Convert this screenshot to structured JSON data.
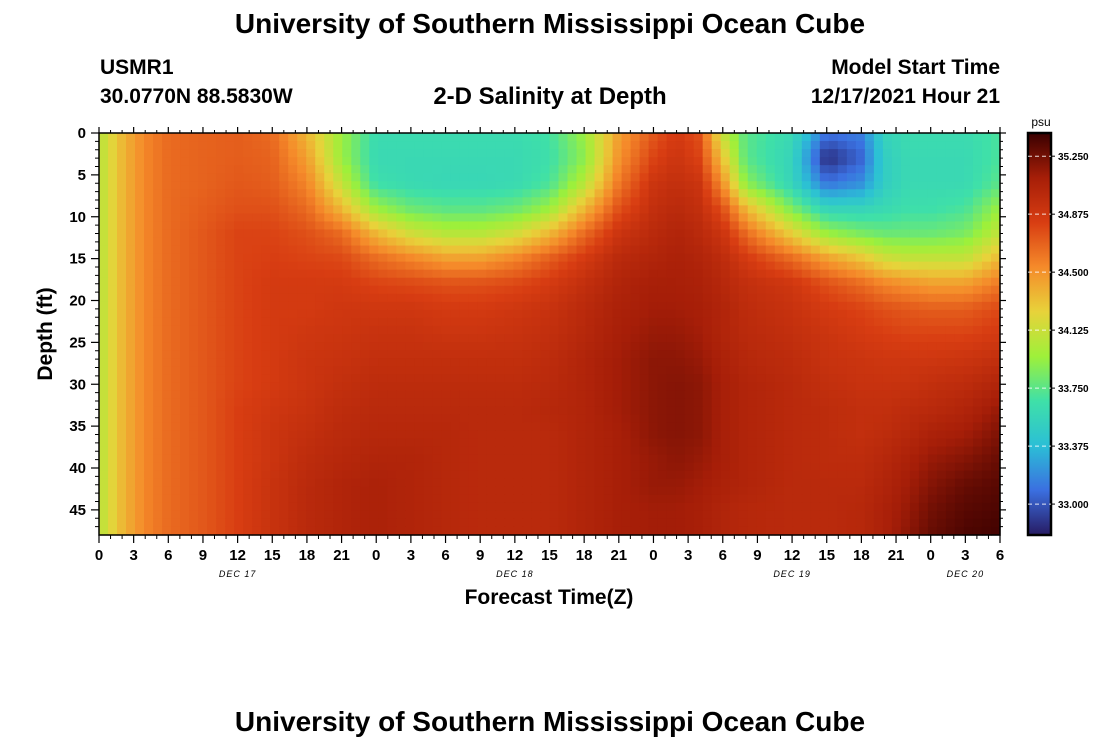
{
  "header": {
    "title": "University of Southern Mississippi Ocean Cube",
    "station": "USMR1",
    "coords": "30.0770N  88.5830W",
    "subtitle": "2-D Salinity at Depth",
    "model_start_label": "Model Start Time",
    "model_start_value": "12/17/2021 Hour 21"
  },
  "footer": {
    "title": "University of Southern Mississippi Ocean Cube"
  },
  "chart_data": {
    "type": "heatmap",
    "title": "2-D Salinity at Depth",
    "xlabel": "Forecast Time(Z)",
    "ylabel": "Depth (ft)",
    "colorbar_label": "psu",
    "x_ticks": [
      "0",
      "3",
      "6",
      "9",
      "12",
      "15",
      "18",
      "21",
      "0",
      "3",
      "6",
      "9",
      "12",
      "15",
      "18",
      "21",
      "0",
      "3",
      "6",
      "9",
      "12",
      "15",
      "18",
      "21",
      "0",
      "3",
      "6"
    ],
    "x_range_hours": [
      0,
      78
    ],
    "date_labels": [
      {
        "label": "DEC 17",
        "hour": 12
      },
      {
        "label": "DEC 18",
        "hour": 36
      },
      {
        "label": "DEC 19",
        "hour": 60
      },
      {
        "label": "DEC 20",
        "hour": 75
      }
    ],
    "y_ticks": [
      0,
      5,
      10,
      15,
      20,
      25,
      30,
      35,
      40,
      45
    ],
    "y_range": [
      0,
      48
    ],
    "y_inverted": true,
    "colorbar_ticks": [
      "35.250",
      "34.875",
      "34.500",
      "34.125",
      "33.750",
      "33.375",
      "33.000"
    ],
    "color_range": [
      32.8,
      35.4
    ],
    "colormap": [
      "#271b63",
      "#3b6fe0",
      "#2bbfd6",
      "#3fe0a8",
      "#9ef03a",
      "#e8d23a",
      "#f58a2a",
      "#d83d12",
      "#a61e08",
      "#3a0000"
    ],
    "grid": false,
    "x_hours": [
      0,
      2,
      4,
      6,
      9,
      12,
      15,
      18,
      21,
      24,
      27,
      30,
      33,
      36,
      39,
      42,
      45,
      48,
      50,
      52,
      54,
      56,
      60,
      63,
      66,
      68,
      70,
      72,
      75,
      78
    ],
    "depths": [
      0,
      3,
      6,
      9,
      12,
      15,
      18,
      21,
      24,
      27,
      30,
      33,
      36,
      39,
      42,
      45,
      48
    ],
    "values": [
      [
        34.05,
        34.35,
        34.55,
        34.65,
        34.68,
        34.7,
        34.65,
        34.35,
        33.95,
        33.62,
        33.62,
        33.62,
        33.62,
        33.62,
        33.68,
        33.95,
        34.45,
        34.72,
        34.85,
        34.75,
        34.1,
        33.75,
        33.6,
        33.1,
        33.15,
        33.55,
        33.62,
        33.62,
        33.62,
        33.7
      ],
      [
        34.05,
        34.35,
        34.55,
        34.65,
        34.68,
        34.7,
        34.68,
        34.45,
        33.95,
        33.6,
        33.6,
        33.6,
        33.6,
        33.6,
        33.65,
        33.9,
        34.5,
        34.8,
        34.9,
        34.8,
        34.3,
        33.75,
        33.55,
        32.85,
        33.05,
        33.5,
        33.6,
        33.6,
        33.6,
        33.7
      ],
      [
        34.05,
        34.35,
        34.55,
        34.65,
        34.68,
        34.72,
        34.7,
        34.55,
        34.1,
        33.65,
        33.6,
        33.58,
        33.58,
        33.6,
        33.7,
        34.05,
        34.6,
        34.9,
        34.95,
        34.9,
        34.5,
        33.9,
        33.55,
        33.1,
        33.2,
        33.5,
        33.6,
        33.6,
        33.6,
        33.75
      ],
      [
        34.05,
        34.35,
        34.55,
        34.65,
        34.7,
        34.75,
        34.75,
        34.65,
        34.35,
        33.95,
        33.8,
        33.75,
        33.75,
        33.8,
        33.95,
        34.35,
        34.75,
        34.95,
        35.0,
        34.95,
        34.75,
        34.35,
        33.85,
        33.55,
        33.55,
        33.6,
        33.65,
        33.65,
        33.7,
        33.95
      ],
      [
        34.05,
        34.35,
        34.55,
        34.65,
        34.72,
        34.8,
        34.8,
        34.75,
        34.65,
        34.35,
        34.15,
        34.05,
        34.05,
        34.15,
        34.35,
        34.65,
        34.9,
        35.0,
        35.05,
        35.0,
        34.9,
        34.65,
        34.25,
        33.95,
        33.85,
        33.8,
        33.8,
        33.8,
        33.85,
        34.1
      ],
      [
        34.05,
        34.35,
        34.55,
        34.65,
        34.72,
        34.8,
        34.82,
        34.8,
        34.78,
        34.65,
        34.55,
        34.45,
        34.45,
        34.55,
        34.7,
        34.85,
        35.0,
        35.05,
        35.08,
        35.05,
        34.98,
        34.85,
        34.65,
        34.45,
        34.3,
        34.15,
        34.1,
        34.1,
        34.1,
        34.35
      ],
      [
        34.05,
        34.35,
        34.55,
        34.65,
        34.72,
        34.8,
        34.85,
        34.85,
        34.85,
        34.8,
        34.78,
        34.75,
        34.75,
        34.78,
        34.85,
        34.95,
        35.05,
        35.1,
        35.1,
        35.08,
        35.02,
        34.95,
        34.88,
        34.75,
        34.65,
        34.55,
        34.5,
        34.45,
        34.45,
        34.6
      ],
      [
        34.05,
        34.35,
        34.55,
        34.65,
        34.72,
        34.8,
        34.85,
        34.85,
        34.88,
        34.88,
        34.88,
        34.85,
        34.85,
        34.88,
        34.92,
        35.0,
        35.08,
        35.12,
        35.12,
        35.1,
        35.05,
        34.98,
        34.92,
        34.85,
        34.8,
        34.75,
        34.72,
        34.7,
        34.7,
        34.78
      ],
      [
        34.05,
        34.35,
        34.55,
        34.65,
        34.72,
        34.8,
        34.85,
        34.88,
        34.9,
        34.92,
        34.92,
        34.9,
        34.9,
        34.92,
        34.95,
        35.02,
        35.1,
        35.15,
        35.15,
        35.12,
        35.05,
        35.0,
        34.95,
        34.9,
        34.85,
        34.82,
        34.8,
        34.8,
        34.8,
        34.85
      ],
      [
        34.05,
        34.35,
        34.55,
        34.65,
        34.72,
        34.8,
        34.85,
        34.9,
        34.92,
        34.95,
        34.95,
        34.95,
        34.95,
        34.95,
        34.98,
        35.05,
        35.12,
        35.18,
        35.18,
        35.15,
        35.08,
        35.02,
        34.98,
        34.92,
        34.9,
        34.88,
        34.88,
        34.88,
        34.9,
        34.95
      ],
      [
        34.05,
        34.35,
        34.55,
        34.65,
        34.72,
        34.8,
        34.85,
        34.9,
        34.95,
        34.98,
        34.98,
        34.98,
        34.98,
        34.98,
        35.0,
        35.05,
        35.12,
        35.18,
        35.2,
        35.18,
        35.1,
        35.05,
        35.0,
        34.95,
        34.92,
        34.92,
        34.92,
        34.95,
        34.98,
        35.05
      ],
      [
        34.05,
        34.35,
        34.55,
        34.65,
        34.72,
        34.82,
        34.88,
        34.92,
        34.98,
        35.0,
        35.0,
        35.0,
        35.0,
        35.0,
        35.02,
        35.05,
        35.12,
        35.18,
        35.2,
        35.18,
        35.1,
        35.05,
        35.0,
        34.98,
        34.95,
        34.95,
        34.98,
        35.0,
        35.05,
        35.15
      ],
      [
        34.05,
        34.35,
        34.55,
        34.65,
        34.72,
        34.82,
        34.9,
        34.95,
        35.0,
        35.02,
        35.02,
        35.02,
        35.0,
        35.0,
        35.0,
        35.05,
        35.1,
        35.18,
        35.2,
        35.18,
        35.1,
        35.05,
        35.0,
        34.98,
        34.95,
        34.98,
        35.02,
        35.08,
        35.12,
        35.22
      ],
      [
        34.05,
        34.35,
        34.55,
        34.65,
        34.72,
        34.82,
        34.9,
        34.98,
        35.02,
        35.05,
        35.05,
        35.02,
        35.0,
        35.0,
        35.0,
        35.05,
        35.1,
        35.15,
        35.18,
        35.15,
        35.1,
        35.05,
        35.0,
        34.98,
        34.98,
        35.02,
        35.08,
        35.15,
        35.2,
        35.28
      ],
      [
        34.05,
        34.35,
        34.55,
        34.65,
        34.72,
        34.82,
        34.92,
        35.0,
        35.05,
        35.08,
        35.05,
        35.02,
        35.0,
        35.0,
        35.0,
        35.05,
        35.1,
        35.15,
        35.15,
        35.12,
        35.08,
        35.05,
        35.0,
        35.0,
        35.0,
        35.05,
        35.12,
        35.2,
        35.28,
        35.32
      ],
      [
        34.05,
        34.35,
        34.55,
        34.65,
        34.72,
        34.82,
        34.92,
        35.0,
        35.05,
        35.08,
        35.05,
        35.02,
        35.0,
        35.0,
        35.0,
        35.05,
        35.1,
        35.12,
        35.12,
        35.1,
        35.05,
        35.02,
        35.0,
        35.0,
        35.02,
        35.08,
        35.15,
        35.25,
        35.32,
        35.35
      ],
      [
        34.05,
        34.35,
        34.55,
        34.65,
        34.72,
        34.82,
        34.92,
        35.0,
        35.05,
        35.08,
        35.05,
        35.02,
        35.0,
        35.0,
        35.0,
        35.05,
        35.1,
        35.12,
        35.12,
        35.1,
        35.05,
        35.02,
        35.0,
        35.0,
        35.02,
        35.08,
        35.18,
        35.28,
        35.35,
        35.38
      ]
    ]
  }
}
